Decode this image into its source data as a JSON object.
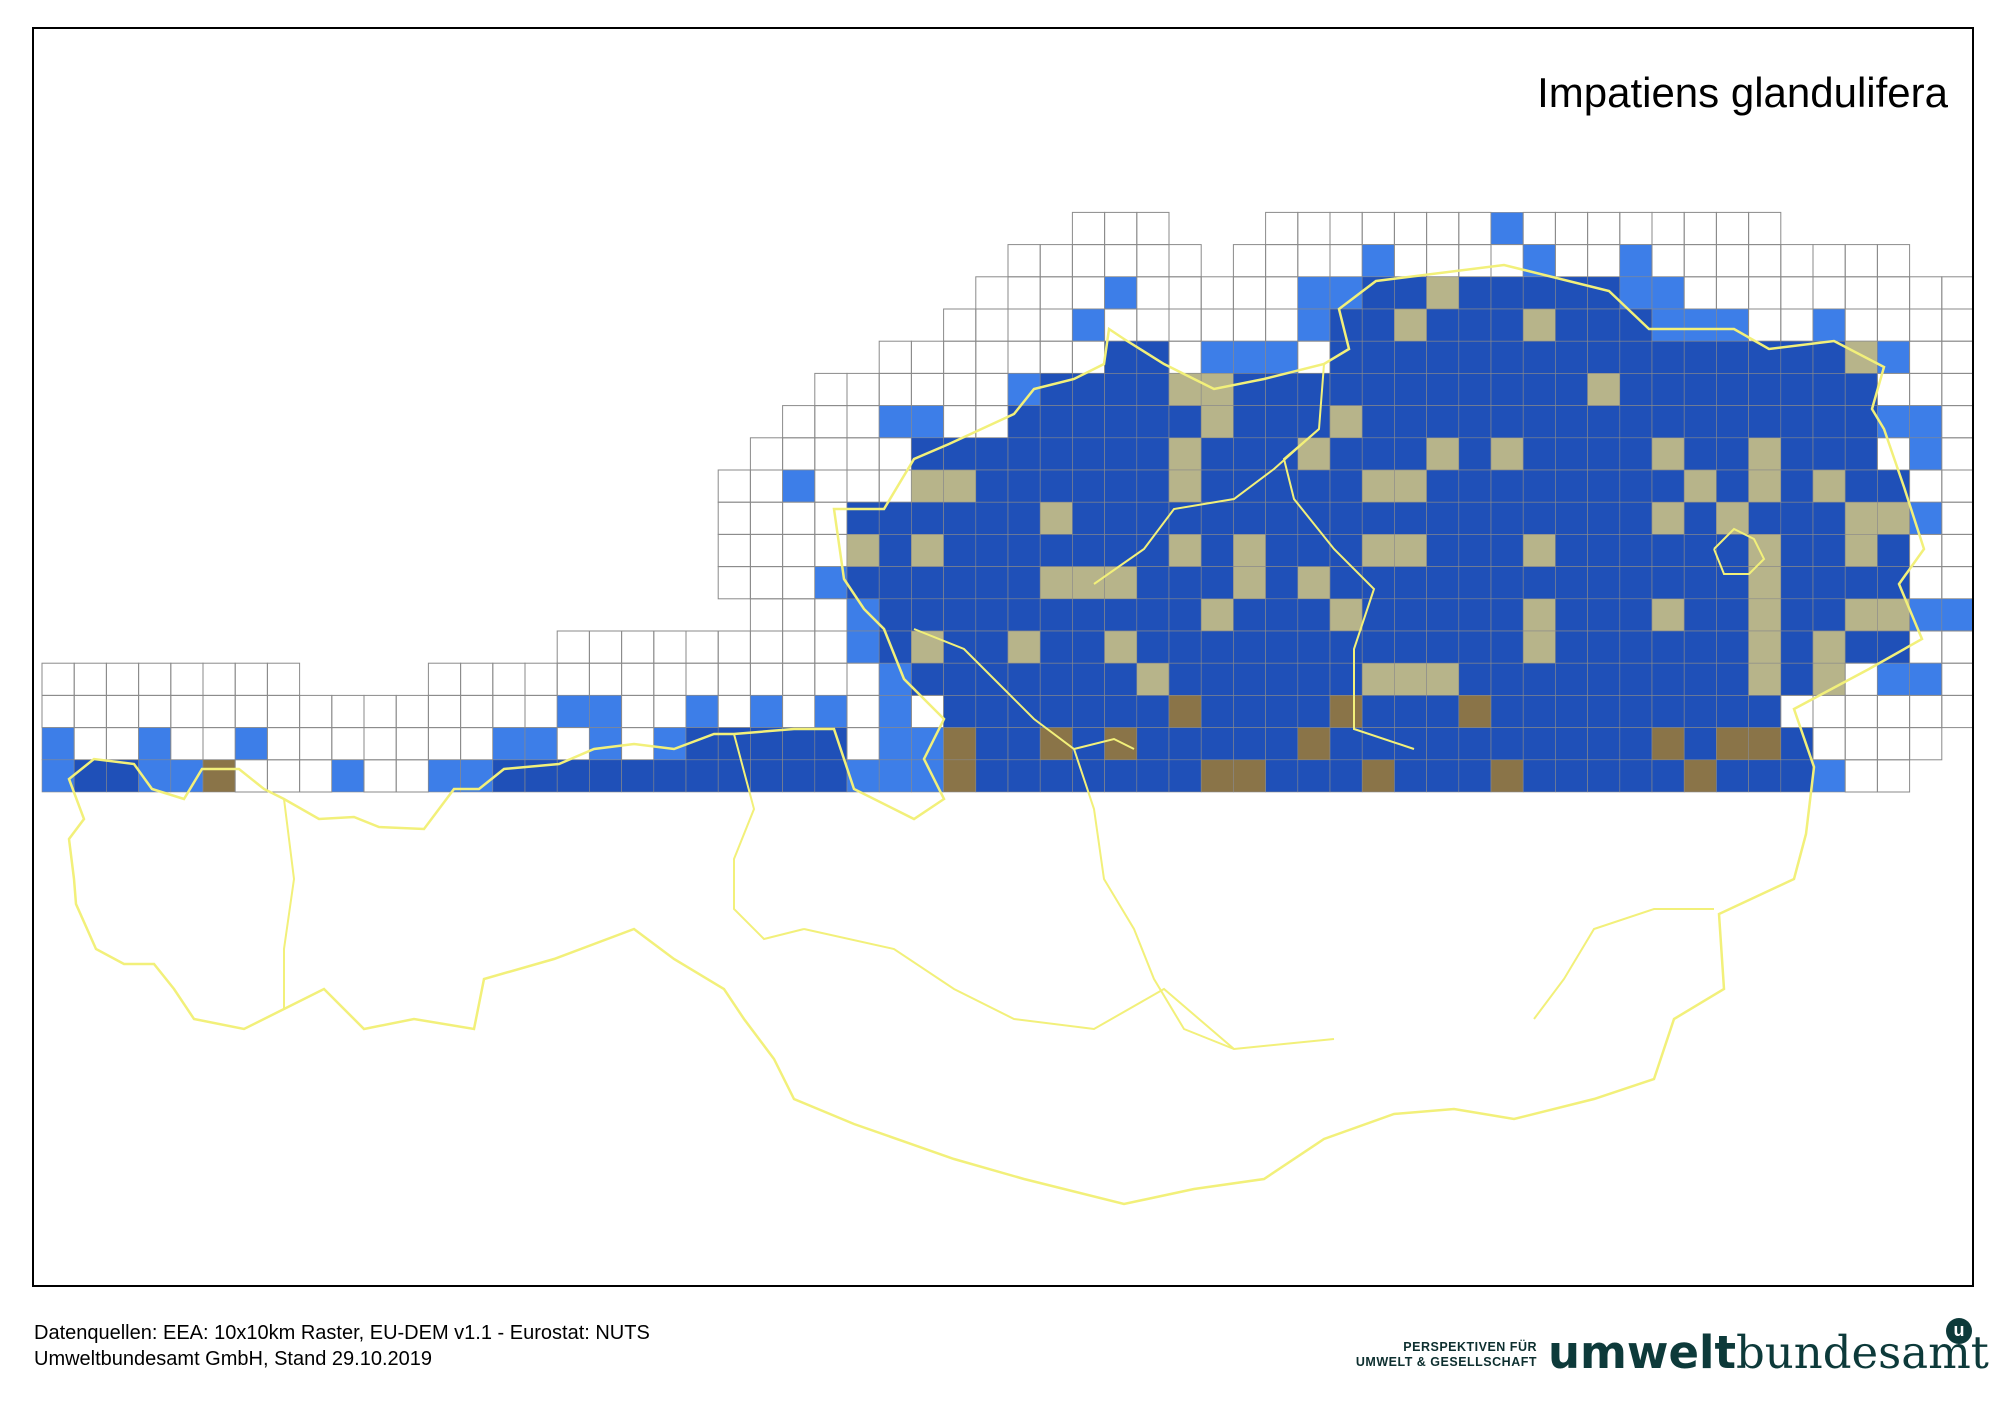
{
  "map": {
    "title": "Impatiens glandulifera",
    "grid": "10x10km",
    "colors": {
      "grid_line": "#8a8a8a",
      "occurrence_cell": "#1f50b8",
      "edge_cell": "#3d7ee8",
      "absence_low": "#b7b48a",
      "absence_mountain": "#8a7448",
      "absence_alpine": "#c8d0d6",
      "border": "#f2f07a"
    }
  },
  "footer": {
    "line1": "Datenquellen: EEA: 10x10km Raster, EU-DEM v1.1 - Eurostat: NUTS",
    "line2": "Umweltbundesamt GmbH, Stand 29.10.2019"
  },
  "logo": {
    "tagline_1": "PERSPEKTIVEN FÜR",
    "tagline_2": "UMWELT & GESELLSCHAFT",
    "word_bold": "umwelt",
    "word_regular": "bundesamt",
    "badge": "u"
  }
}
